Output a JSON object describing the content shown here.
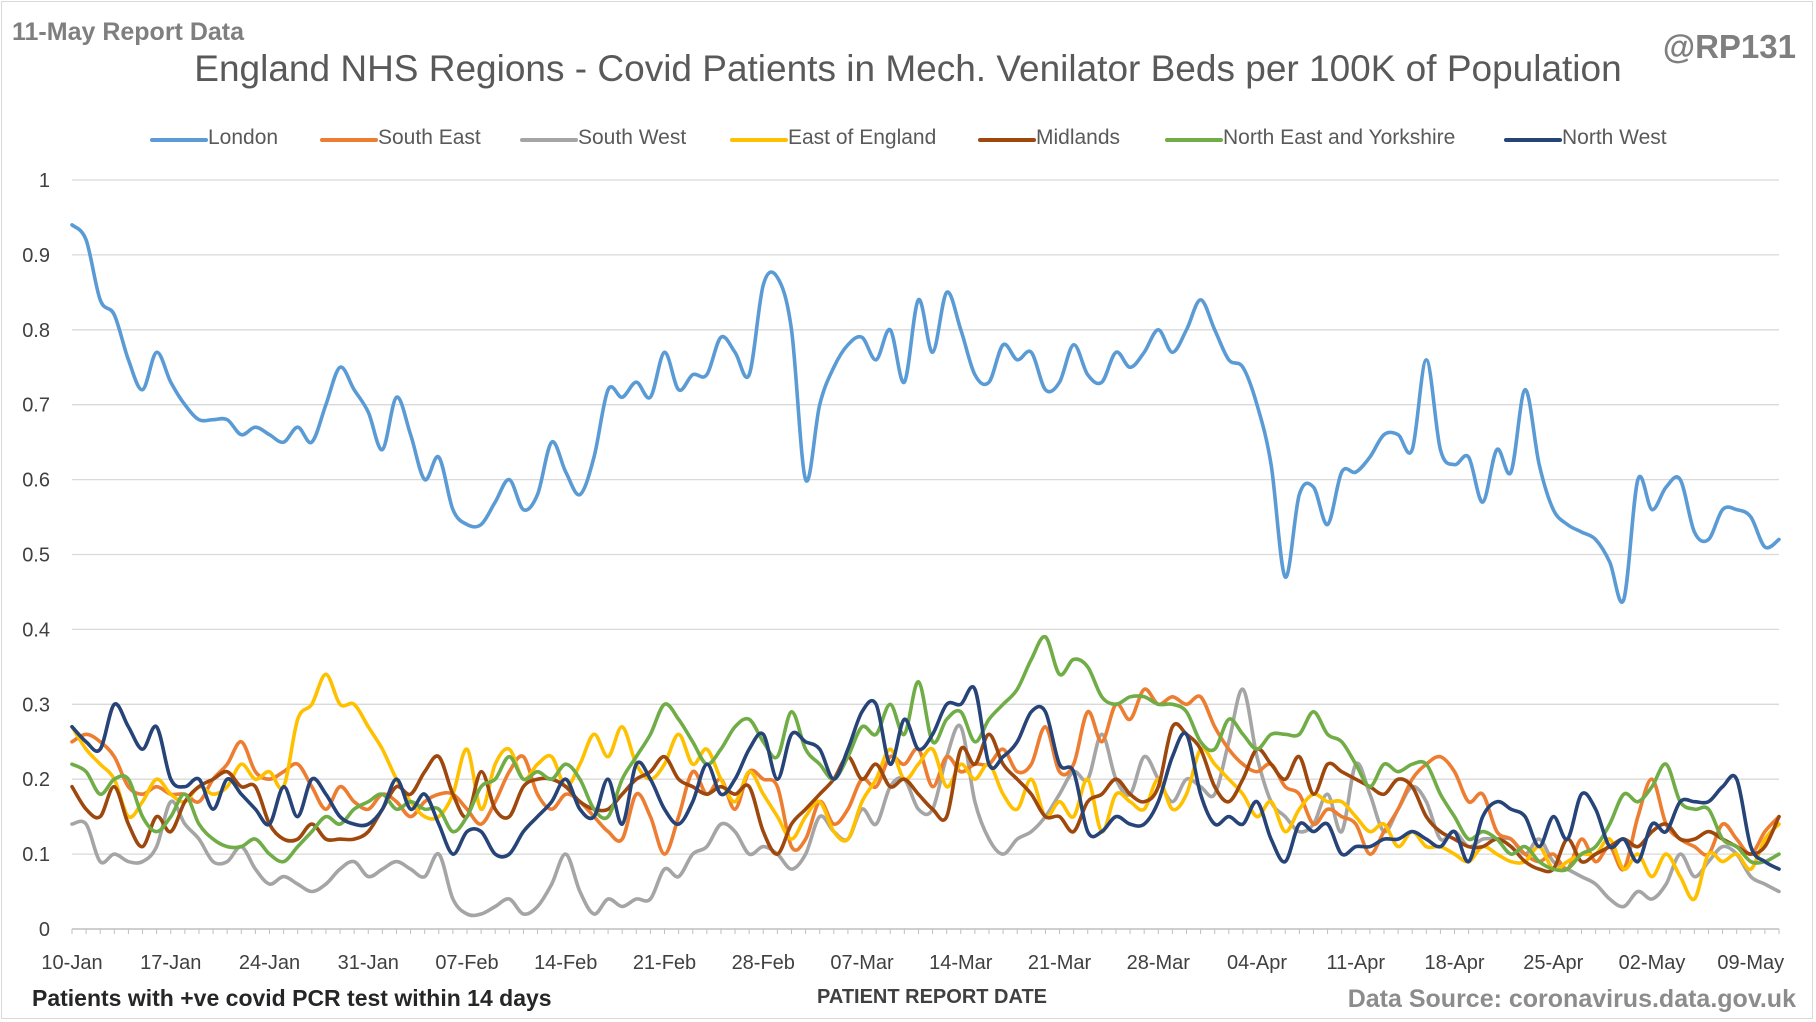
{
  "header": {
    "report_label": "11-May Report Data",
    "handle": "@RP131",
    "title": "England NHS Regions - Covid Patients in Mech. Venilator Beds per 100K of Population"
  },
  "footer": {
    "footnote": "Patients with +ve covid PCR test within 14 days",
    "xlabel": "PATIENT REPORT DATE",
    "source": "Data Source: coronavirus.data.gov.uk"
  },
  "chart_data": {
    "type": "line",
    "title": "England NHS Regions - Covid Patients in Mech. Venilator Beds per 100K of Population",
    "xlabel": "PATIENT REPORT DATE",
    "ylabel": "",
    "ylim": [
      0,
      1
    ],
    "yticks": [
      "0",
      "0.1",
      "0.2",
      "0.3",
      "0.4",
      "0.5",
      "0.6",
      "0.7",
      "0.8",
      "0.9",
      "1"
    ],
    "x_start": "10-Jan",
    "x_end": "10-May",
    "xtick_labels": [
      "10-Jan",
      "17-Jan",
      "24-Jan",
      "31-Jan",
      "07-Feb",
      "14-Feb",
      "21-Feb",
      "28-Feb",
      "07-Mar",
      "14-Mar",
      "21-Mar",
      "28-Mar",
      "04-Apr",
      "11-Apr",
      "18-Apr",
      "25-Apr",
      "02-May",
      "09-May"
    ],
    "grid": "horizontal",
    "legend_position": "top",
    "series": [
      {
        "name": "London",
        "color": "#5b9bd5",
        "values": [
          0.94,
          0.92,
          0.84,
          0.82,
          0.76,
          0.72,
          0.77,
          0.73,
          0.7,
          0.68,
          0.68,
          0.68,
          0.66,
          0.67,
          0.66,
          0.65,
          0.67,
          0.65,
          0.7,
          0.75,
          0.72,
          0.69,
          0.64,
          0.71,
          0.66,
          0.6,
          0.63,
          0.56,
          0.54,
          0.54,
          0.57,
          0.6,
          0.56,
          0.58,
          0.65,
          0.61,
          0.58,
          0.63,
          0.72,
          0.71,
          0.73,
          0.71,
          0.77,
          0.72,
          0.74,
          0.74,
          0.79,
          0.77,
          0.74,
          0.86,
          0.87,
          0.8,
          0.6,
          0.7,
          0.75,
          0.78,
          0.79,
          0.76,
          0.8,
          0.73,
          0.84,
          0.77,
          0.85,
          0.8,
          0.74,
          0.73,
          0.78,
          0.76,
          0.77,
          0.72,
          0.73,
          0.78,
          0.74,
          0.73,
          0.77,
          0.75,
          0.77,
          0.8,
          0.77,
          0.8,
          0.84,
          0.8,
          0.76,
          0.75,
          0.7,
          0.62,
          0.47,
          0.58,
          0.59,
          0.54,
          0.61,
          0.61,
          0.63,
          0.66,
          0.66,
          0.64,
          0.76,
          0.64,
          0.62,
          0.63,
          0.57,
          0.64,
          0.61,
          0.72,
          0.62,
          0.56,
          0.54,
          0.53,
          0.52,
          0.49,
          0.44,
          0.6,
          0.56,
          0.59,
          0.6,
          0.53,
          0.52,
          0.56,
          0.56,
          0.55,
          0.51,
          0.52
        ]
      },
      {
        "name": "South East",
        "color": "#ed7d31",
        "values": [
          0.25,
          0.26,
          0.25,
          0.23,
          0.19,
          0.18,
          0.19,
          0.18,
          0.18,
          0.17,
          0.2,
          0.22,
          0.25,
          0.21,
          0.2,
          0.21,
          0.22,
          0.19,
          0.16,
          0.19,
          0.17,
          0.16,
          0.18,
          0.17,
          0.15,
          0.17,
          0.18,
          0.18,
          0.16,
          0.14,
          0.17,
          0.21,
          0.23,
          0.18,
          0.16,
          0.18,
          0.17,
          0.15,
          0.13,
          0.12,
          0.18,
          0.15,
          0.1,
          0.15,
          0.21,
          0.18,
          0.2,
          0.16,
          0.21,
          0.2,
          0.19,
          0.11,
          0.12,
          0.17,
          0.14,
          0.16,
          0.2,
          0.19,
          0.23,
          0.22,
          0.24,
          0.19,
          0.23,
          0.21,
          0.22,
          0.22,
          0.24,
          0.21,
          0.22,
          0.27,
          0.21,
          0.22,
          0.29,
          0.25,
          0.3,
          0.28,
          0.32,
          0.3,
          0.31,
          0.3,
          0.31,
          0.27,
          0.24,
          0.22,
          0.21,
          0.22,
          0.19,
          0.18,
          0.14,
          0.16,
          0.15,
          0.14,
          0.1,
          0.13,
          0.16,
          0.2,
          0.22,
          0.23,
          0.21,
          0.17,
          0.18,
          0.13,
          0.12,
          0.1,
          0.09,
          0.1,
          0.08,
          0.12,
          0.09,
          0.11,
          0.08,
          0.15,
          0.2,
          0.14,
          0.12,
          0.11,
          0.1,
          0.14,
          0.12,
          0.1,
          0.13,
          0.15
        ]
      },
      {
        "name": "South West",
        "color": "#a5a5a5",
        "values": [
          0.14,
          0.14,
          0.09,
          0.1,
          0.09,
          0.09,
          0.11,
          0.17,
          0.14,
          0.12,
          0.09,
          0.09,
          0.11,
          0.08,
          0.06,
          0.07,
          0.06,
          0.05,
          0.06,
          0.08,
          0.09,
          0.07,
          0.08,
          0.09,
          0.08,
          0.07,
          0.1,
          0.04,
          0.02,
          0.02,
          0.03,
          0.04,
          0.02,
          0.03,
          0.06,
          0.1,
          0.05,
          0.02,
          0.04,
          0.03,
          0.04,
          0.04,
          0.08,
          0.07,
          0.1,
          0.11,
          0.14,
          0.13,
          0.1,
          0.11,
          0.1,
          0.08,
          0.1,
          0.15,
          0.13,
          0.12,
          0.16,
          0.14,
          0.19,
          0.2,
          0.16,
          0.16,
          0.23,
          0.27,
          0.17,
          0.12,
          0.1,
          0.12,
          0.13,
          0.15,
          0.18,
          0.21,
          0.2,
          0.26,
          0.2,
          0.18,
          0.23,
          0.2,
          0.17,
          0.2,
          0.19,
          0.18,
          0.25,
          0.32,
          0.23,
          0.17,
          0.15,
          0.13,
          0.14,
          0.18,
          0.13,
          0.22,
          0.18,
          0.13,
          0.16,
          0.19,
          0.17,
          0.12,
          0.13,
          0.11,
          0.12,
          0.12,
          0.12,
          0.1,
          0.12,
          0.09,
          0.08,
          0.07,
          0.06,
          0.04,
          0.03,
          0.05,
          0.04,
          0.06,
          0.1,
          0.07,
          0.09,
          0.11,
          0.1,
          0.07,
          0.06,
          0.05
        ]
      },
      {
        "name": "East of England",
        "color": "#ffc000",
        "values": [
          0.27,
          0.24,
          0.22,
          0.2,
          0.15,
          0.17,
          0.2,
          0.18,
          0.17,
          0.19,
          0.18,
          0.19,
          0.22,
          0.2,
          0.21,
          0.19,
          0.28,
          0.3,
          0.34,
          0.3,
          0.3,
          0.27,
          0.24,
          0.2,
          0.17,
          0.15,
          0.15,
          0.18,
          0.24,
          0.16,
          0.22,
          0.24,
          0.2,
          0.22,
          0.23,
          0.19,
          0.22,
          0.26,
          0.23,
          0.27,
          0.22,
          0.2,
          0.22,
          0.26,
          0.22,
          0.24,
          0.2,
          0.17,
          0.21,
          0.18,
          0.15,
          0.12,
          0.15,
          0.17,
          0.13,
          0.12,
          0.17,
          0.2,
          0.24,
          0.2,
          0.22,
          0.24,
          0.19,
          0.22,
          0.2,
          0.22,
          0.18,
          0.16,
          0.2,
          0.15,
          0.17,
          0.15,
          0.2,
          0.13,
          0.18,
          0.17,
          0.16,
          0.2,
          0.16,
          0.18,
          0.24,
          0.22,
          0.2,
          0.18,
          0.15,
          0.17,
          0.13,
          0.16,
          0.18,
          0.17,
          0.17,
          0.15,
          0.13,
          0.14,
          0.11,
          0.13,
          0.11,
          0.11,
          0.1,
          0.09,
          0.11,
          0.1,
          0.09,
          0.09,
          0.11,
          0.08,
          0.09,
          0.1,
          0.1,
          0.12,
          0.08,
          0.1,
          0.07,
          0.1,
          0.07,
          0.04,
          0.1,
          0.09,
          0.1,
          0.08,
          0.12,
          0.14
        ]
      },
      {
        "name": "Midlands",
        "color": "#9e480e",
        "values": [
          0.19,
          0.16,
          0.15,
          0.19,
          0.14,
          0.11,
          0.15,
          0.13,
          0.17,
          0.19,
          0.2,
          0.21,
          0.19,
          0.19,
          0.14,
          0.12,
          0.12,
          0.14,
          0.12,
          0.12,
          0.12,
          0.13,
          0.16,
          0.19,
          0.18,
          0.21,
          0.23,
          0.18,
          0.15,
          0.21,
          0.16,
          0.15,
          0.19,
          0.2,
          0.2,
          0.19,
          0.17,
          0.16,
          0.16,
          0.18,
          0.2,
          0.21,
          0.23,
          0.2,
          0.19,
          0.18,
          0.19,
          0.18,
          0.19,
          0.13,
          0.1,
          0.14,
          0.16,
          0.18,
          0.2,
          0.23,
          0.2,
          0.22,
          0.19,
          0.2,
          0.18,
          0.16,
          0.15,
          0.24,
          0.22,
          0.26,
          0.22,
          0.2,
          0.18,
          0.15,
          0.15,
          0.13,
          0.17,
          0.18,
          0.2,
          0.18,
          0.17,
          0.19,
          0.27,
          0.26,
          0.24,
          0.19,
          0.17,
          0.2,
          0.24,
          0.22,
          0.2,
          0.23,
          0.18,
          0.22,
          0.21,
          0.2,
          0.19,
          0.18,
          0.2,
          0.19,
          0.15,
          0.13,
          0.12,
          0.11,
          0.11,
          0.12,
          0.11,
          0.09,
          0.08,
          0.08,
          0.12,
          0.09,
          0.1,
          0.11,
          0.12,
          0.11,
          0.13,
          0.14,
          0.12,
          0.12,
          0.13,
          0.12,
          0.11,
          0.1,
          0.11,
          0.15
        ]
      },
      {
        "name": "North East and Yorkshire",
        "color": "#70ad47",
        "values": [
          0.22,
          0.21,
          0.18,
          0.2,
          0.2,
          0.15,
          0.13,
          0.15,
          0.18,
          0.14,
          0.12,
          0.11,
          0.11,
          0.12,
          0.1,
          0.09,
          0.11,
          0.13,
          0.15,
          0.14,
          0.16,
          0.17,
          0.18,
          0.16,
          0.17,
          0.16,
          0.16,
          0.13,
          0.15,
          0.19,
          0.2,
          0.23,
          0.2,
          0.21,
          0.2,
          0.22,
          0.2,
          0.16,
          0.15,
          0.2,
          0.23,
          0.26,
          0.3,
          0.28,
          0.25,
          0.22,
          0.24,
          0.27,
          0.28,
          0.25,
          0.23,
          0.29,
          0.24,
          0.22,
          0.2,
          0.23,
          0.27,
          0.26,
          0.3,
          0.26,
          0.33,
          0.25,
          0.28,
          0.29,
          0.25,
          0.28,
          0.3,
          0.32,
          0.36,
          0.39,
          0.34,
          0.36,
          0.35,
          0.31,
          0.3,
          0.31,
          0.31,
          0.3,
          0.3,
          0.29,
          0.25,
          0.24,
          0.28,
          0.26,
          0.24,
          0.26,
          0.26,
          0.26,
          0.29,
          0.26,
          0.25,
          0.22,
          0.19,
          0.22,
          0.21,
          0.22,
          0.22,
          0.18,
          0.15,
          0.12,
          0.13,
          0.12,
          0.1,
          0.11,
          0.09,
          0.08,
          0.08,
          0.1,
          0.11,
          0.14,
          0.18,
          0.17,
          0.19,
          0.22,
          0.17,
          0.16,
          0.16,
          0.12,
          0.11,
          0.09,
          0.09,
          0.1
        ]
      },
      {
        "name": "North West",
        "color": "#264478",
        "values": [
          0.27,
          0.25,
          0.24,
          0.3,
          0.27,
          0.24,
          0.27,
          0.2,
          0.19,
          0.2,
          0.16,
          0.2,
          0.18,
          0.16,
          0.14,
          0.19,
          0.15,
          0.2,
          0.18,
          0.15,
          0.14,
          0.14,
          0.16,
          0.2,
          0.16,
          0.18,
          0.14,
          0.1,
          0.13,
          0.13,
          0.1,
          0.1,
          0.13,
          0.15,
          0.17,
          0.2,
          0.16,
          0.15,
          0.2,
          0.14,
          0.22,
          0.2,
          0.16,
          0.14,
          0.17,
          0.22,
          0.18,
          0.2,
          0.24,
          0.26,
          0.2,
          0.26,
          0.25,
          0.24,
          0.2,
          0.24,
          0.29,
          0.3,
          0.22,
          0.28,
          0.24,
          0.26,
          0.3,
          0.3,
          0.32,
          0.22,
          0.23,
          0.25,
          0.29,
          0.29,
          0.22,
          0.21,
          0.13,
          0.13,
          0.15,
          0.14,
          0.14,
          0.17,
          0.23,
          0.26,
          0.18,
          0.14,
          0.15,
          0.14,
          0.17,
          0.12,
          0.09,
          0.14,
          0.13,
          0.14,
          0.1,
          0.11,
          0.11,
          0.12,
          0.12,
          0.13,
          0.12,
          0.11,
          0.13,
          0.09,
          0.15,
          0.17,
          0.16,
          0.15,
          0.11,
          0.15,
          0.12,
          0.18,
          0.16,
          0.11,
          0.12,
          0.09,
          0.14,
          0.13,
          0.17,
          0.17,
          0.17,
          0.19,
          0.2,
          0.11,
          0.09,
          0.08
        ]
      }
    ]
  }
}
